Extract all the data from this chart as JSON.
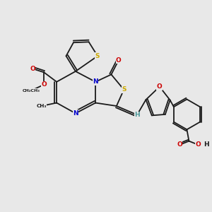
{
  "bg": "#e8e8e8",
  "bc": "#1a1a1a",
  "Nc": "#0000cc",
  "Oc": "#cc0000",
  "Sc": "#ccaa00",
  "tc": "#4a9898",
  "lw": 1.3,
  "fs": 6.5,
  "fsm": 5.2,
  "fss": 4.5,
  "xlim": [
    0,
    10
  ],
  "ylim": [
    0,
    10
  ],
  "figsize": [
    3.0,
    3.0
  ],
  "dpi": 100
}
